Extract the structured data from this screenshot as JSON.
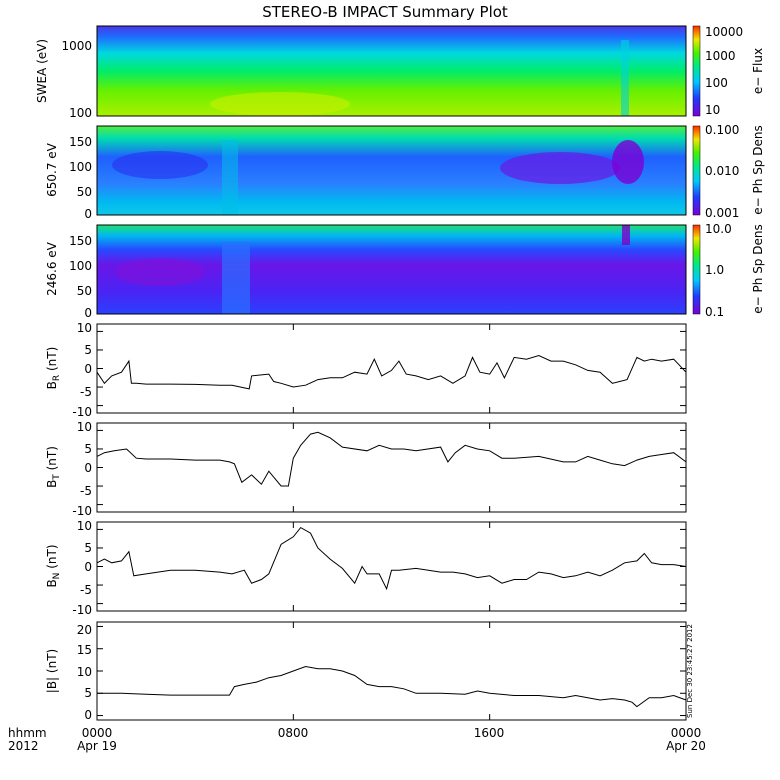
{
  "title": "STEREO-B IMPACT Summary Plot",
  "footer": {
    "left_top": "hhmm",
    "left_bottom": "2012",
    "date_start": "Apr 19",
    "date_end": "Apr 20",
    "ticks": [
      "0000",
      "0800",
      "1600",
      "0000"
    ],
    "stamp": "Sun Dec 30 23:45:27 2012"
  },
  "chart_data": [
    {
      "type": "heatmap",
      "ylabel": "SWEA (eV)",
      "yscale": "log",
      "ylim": [
        100,
        2000
      ],
      "yticks": [
        "1000",
        "100"
      ],
      "colorbar": {
        "label": "e− Flux",
        "scale": "log",
        "ticks": [
          "10000",
          "1000",
          "100",
          "10"
        ]
      }
    },
    {
      "type": "heatmap",
      "ylabel": "650.7 eV",
      "ylim": [
        0,
        180
      ],
      "yticks": [
        "150",
        "100",
        "50",
        "0"
      ],
      "colorbar": {
        "label": "e− Ph Sp Dens",
        "scale": "log",
        "ticks": [
          "0.100",
          "0.010",
          "0.001"
        ]
      }
    },
    {
      "type": "heatmap",
      "ylabel": "246.6 eV",
      "ylim": [
        0,
        180
      ],
      "yticks": [
        "150",
        "100",
        "50",
        "0"
      ],
      "colorbar": {
        "label": "e− Ph Sp Dens",
        "scale": "log",
        "ticks": [
          "10.0",
          "1.0",
          "0.1"
        ]
      }
    },
    {
      "type": "line",
      "ylabel": "B_R (nT)",
      "ylim": [
        -12,
        12
      ],
      "yticks": [
        "10",
        "5",
        "0",
        "-5",
        "-10"
      ],
      "xlim": [
        0,
        24
      ],
      "x": [
        0,
        0.3,
        0.6,
        1.0,
        1.3,
        1.4,
        1.6,
        2.0,
        3.0,
        4.0,
        5.0,
        5.5,
        6.2,
        6.3,
        7.0,
        7.2,
        7.5,
        8.0,
        8.5,
        9.0,
        9.5,
        10.0,
        10.5,
        11.0,
        11.3,
        11.6,
        12.0,
        12.3,
        12.6,
        13.0,
        13.5,
        14.0,
        14.5,
        15.0,
        15.3,
        15.6,
        16.0,
        16.3,
        16.6,
        17.0,
        17.5,
        18.0,
        18.5,
        19.0,
        19.5,
        20.0,
        20.5,
        21.0,
        21.3,
        21.6,
        22.0,
        22.3,
        22.6,
        23.0,
        23.5,
        24.0
      ],
      "y": [
        -1,
        -4,
        -2,
        -1,
        2,
        -4,
        -4,
        -4.2,
        -4.2,
        -4.3,
        -4.5,
        -4.5,
        -5.5,
        -2,
        -1.5,
        -3.5,
        -4,
        -5,
        -4.5,
        -3,
        -2.5,
        -2.5,
        -1,
        -1.5,
        2.5,
        -2,
        -0.5,
        2,
        -1.5,
        -2,
        -3,
        -2,
        -4,
        -2,
        3,
        -1,
        -1.5,
        1.5,
        -2.5,
        3,
        2.5,
        3.5,
        2,
        2,
        1,
        -0.5,
        -1,
        -4,
        -3.5,
        -3,
        3,
        2,
        2.5,
        2,
        2.5,
        -1
      ]
    },
    {
      "type": "line",
      "ylabel": "B_T (nT)",
      "ylim": [
        -12,
        12
      ],
      "yticks": [
        "10",
        "5",
        "0",
        "-5",
        "-10"
      ],
      "xlim": [
        0,
        24
      ],
      "x": [
        0,
        0.3,
        0.7,
        1.2,
        1.6,
        2.0,
        3.0,
        4.0,
        5.0,
        5.4,
        5.6,
        5.9,
        6.3,
        6.7,
        7.0,
        7.5,
        7.8,
        8.0,
        8.3,
        8.7,
        9.0,
        9.5,
        10.0,
        11.0,
        11.5,
        12.0,
        12.5,
        13.0,
        14.0,
        14.3,
        14.6,
        15.0,
        15.5,
        16.0,
        16.5,
        17.0,
        18.0,
        19.0,
        19.5,
        20.0,
        20.5,
        21.0,
        21.5,
        22.0,
        22.5,
        23.0,
        23.5,
        24.0
      ],
      "y": [
        3,
        4,
        4.5,
        5,
        2.5,
        2.3,
        2.3,
        2,
        2,
        1.5,
        1,
        -4,
        -2,
        -4.5,
        -1,
        -5,
        -5,
        2.5,
        6,
        9,
        9.5,
        8,
        5.5,
        4.5,
        6,
        5,
        5,
        4.5,
        5.5,
        1.5,
        4,
        6,
        5,
        4.5,
        2.5,
        2.5,
        3,
        1.5,
        1.5,
        3,
        2,
        1,
        0.5,
        2,
        3,
        3.5,
        4,
        1.5
      ]
    },
    {
      "type": "line",
      "ylabel": "B_N (nT)",
      "ylim": [
        -12,
        12
      ],
      "yticks": [
        "10",
        "5",
        "0",
        "-5",
        "-10"
      ],
      "xlim": [
        0,
        24
      ],
      "x": [
        0,
        0.3,
        0.6,
        1.0,
        1.3,
        1.5,
        2.0,
        3.0,
        4.0,
        5.0,
        5.5,
        6.0,
        6.3,
        6.7,
        7.0,
        7.5,
        8.0,
        8.3,
        8.7,
        9.0,
        9.5,
        10.0,
        10.5,
        10.8,
        11.0,
        11.5,
        11.8,
        12.0,
        12.3,
        13.0,
        14.0,
        14.5,
        15.0,
        15.5,
        16.0,
        16.5,
        17.0,
        17.5,
        18.0,
        18.5,
        19.0,
        19.5,
        20.0,
        20.5,
        21.0,
        21.5,
        22.0,
        22.3,
        22.6,
        23.0,
        23.5,
        24.0
      ],
      "y": [
        1,
        2,
        1,
        1.5,
        4,
        -2.5,
        -2,
        -1,
        -1,
        -1.5,
        -2,
        -1,
        -4.5,
        -3.5,
        -2,
        6,
        8,
        10.5,
        9,
        5,
        2,
        -0.5,
        -4.5,
        0,
        -2,
        -2,
        -6,
        -1,
        -1,
        -0.5,
        -1.5,
        -1.5,
        -2,
        -3,
        -2.5,
        -4.5,
        -3.5,
        -3.5,
        -1.5,
        -2,
        -3,
        -2.5,
        -1.5,
        -2.5,
        -1,
        1,
        1.5,
        3.5,
        1,
        0.5,
        0.5,
        0
      ]
    },
    {
      "type": "line",
      "ylabel": "|B| (nT)",
      "ylim": [
        -1,
        21
      ],
      "yticks": [
        "20",
        "15",
        "10",
        "5",
        "0"
      ],
      "xlim": [
        0,
        24
      ],
      "x": [
        0,
        0.5,
        1.0,
        2.0,
        3.0,
        4.0,
        5.0,
        5.4,
        5.6,
        6.0,
        6.5,
        7.0,
        7.5,
        8.0,
        8.5,
        9.0,
        9.5,
        10.0,
        10.5,
        11.0,
        11.5,
        12.0,
        12.5,
        13.0,
        14.0,
        15.0,
        15.5,
        16.0,
        17.0,
        18.0,
        19.0,
        19.5,
        20.0,
        20.5,
        21.0,
        21.5,
        21.8,
        22.0,
        22.5,
        23.0,
        23.5,
        24.0
      ],
      "y": [
        5,
        5,
        5,
        4.8,
        4.6,
        4.6,
        4.6,
        4.6,
        6.5,
        7,
        7.5,
        8.5,
        9,
        10,
        11,
        10.5,
        10.5,
        10,
        9,
        7,
        6.5,
        6.5,
        6,
        5,
        5,
        4.8,
        5.5,
        5,
        4.5,
        4.5,
        4,
        4.5,
        4,
        3.5,
        3.8,
        3.5,
        3,
        2,
        4,
        4,
        4.5,
        3.5
      ]
    }
  ]
}
